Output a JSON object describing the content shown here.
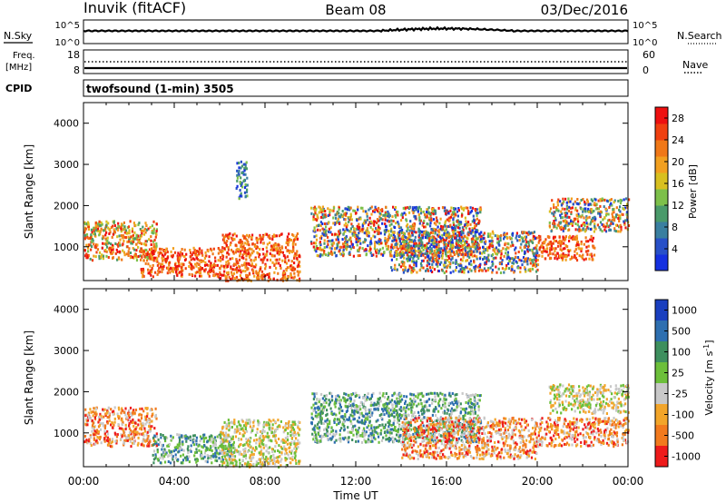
{
  "header": {
    "station": "Inuvik (fitACF)",
    "beam": "Beam 08",
    "date": "03/Dec/2016"
  },
  "top_panels": {
    "nsky_label": "N.Sky",
    "nsky_ticks": [
      "10^5",
      "10^0"
    ],
    "nsearch_label": "N.Search",
    "nsearch_ticks": [
      "10^5",
      "10^0"
    ],
    "freq_label": "Freq.",
    "freq_unit": "[MHz]",
    "freq_ticks": [
      "18",
      "8"
    ],
    "nave_label": "Nave",
    "nave_ticks": [
      "60",
      "0"
    ],
    "cpid_label": "CPID",
    "cpid_text": "twofsound (1-min) 3505"
  },
  "chart_data": [
    {
      "type": "heatmap",
      "name": "power",
      "title": "",
      "ylabel": "Slant Range [km]",
      "xlabel": "",
      "x_ticks": [
        "00:00",
        "04:00",
        "08:00",
        "12:00",
        "16:00",
        "20:00",
        "00:00"
      ],
      "x_range_hours": [
        0,
        24
      ],
      "ylim_km": [
        180,
        4500
      ],
      "y_ticks": [
        1000,
        2000,
        3000,
        4000
      ],
      "colorbar": {
        "label": "Power [dB]",
        "ticks": [
          "4",
          "8",
          "12",
          "16",
          "20",
          "24",
          "28"
        ],
        "range": [
          0,
          30
        ],
        "colors": [
          "#1530e0",
          "#2850c8",
          "#3a7fa0",
          "#4a9a6a",
          "#7dc04a",
          "#d8c020",
          "#f2a020",
          "#f07818",
          "#f04010",
          "#ee1010"
        ]
      },
      "scatter_regions": [
        {
          "t": [
            0.0,
            3.2
          ],
          "r": [
            700,
            1650
          ],
          "level": "mixed-strong"
        },
        {
          "t": [
            2.5,
            6.0
          ],
          "r": [
            300,
            1000
          ],
          "level": "strong"
        },
        {
          "t": [
            6.0,
            9.5
          ],
          "r": [
            200,
            1350
          ],
          "level": "strong"
        },
        {
          "t": [
            6.7,
            7.2
          ],
          "r": [
            2200,
            3100
          ],
          "level": "weak"
        },
        {
          "t": [
            10.0,
            17.5
          ],
          "r": [
            800,
            2000
          ],
          "level": "mixed"
        },
        {
          "t": [
            13.5,
            20.0
          ],
          "r": [
            400,
            1400
          ],
          "level": "mixed"
        },
        {
          "t": [
            20.0,
            22.5
          ],
          "r": [
            700,
            1300
          ],
          "level": "strong"
        },
        {
          "t": [
            20.5,
            24.0
          ],
          "r": [
            1400,
            2200
          ],
          "level": "mixed"
        }
      ]
    },
    {
      "type": "heatmap",
      "name": "velocity",
      "title": "",
      "ylabel": "Slant Range [km]",
      "xlabel": "Time UT",
      "x_ticks": [
        "00:00",
        "04:00",
        "08:00",
        "12:00",
        "16:00",
        "20:00",
        "00:00"
      ],
      "x_range_hours": [
        0,
        24
      ],
      "ylim_km": [
        180,
        4500
      ],
      "y_ticks": [
        1000,
        2000,
        3000,
        4000
      ],
      "colorbar": {
        "label": "Velocity [m s^-1]",
        "ticks": [
          "1000",
          "500",
          "100",
          "25",
          "-25",
          "-100",
          "-500",
          "-1000"
        ],
        "colors": [
          "#1a3fbf",
          "#2e6fb0",
          "#3e8f5e",
          "#6cbf3a",
          "#c8c8c8",
          "#f2a52a",
          "#f27a1e",
          "#ee1b1b"
        ]
      },
      "scatter_regions": [
        {
          "t": [
            0.0,
            3.2
          ],
          "r": [
            700,
            1650
          ],
          "level": "negative"
        },
        {
          "t": [
            3.0,
            6.5
          ],
          "r": [
            300,
            1000
          ],
          "level": "positive"
        },
        {
          "t": [
            6.0,
            9.5
          ],
          "r": [
            200,
            1350
          ],
          "level": "near-zero"
        },
        {
          "t": [
            10.0,
            17.5
          ],
          "r": [
            800,
            2000
          ],
          "level": "positive"
        },
        {
          "t": [
            14.0,
            20.0
          ],
          "r": [
            400,
            1400
          ],
          "level": "negative"
        },
        {
          "t": [
            20.0,
            24.0
          ],
          "r": [
            700,
            1400
          ],
          "level": "negative"
        },
        {
          "t": [
            20.5,
            24.0
          ],
          "r": [
            1500,
            2200
          ],
          "level": "near-zero"
        }
      ]
    }
  ]
}
